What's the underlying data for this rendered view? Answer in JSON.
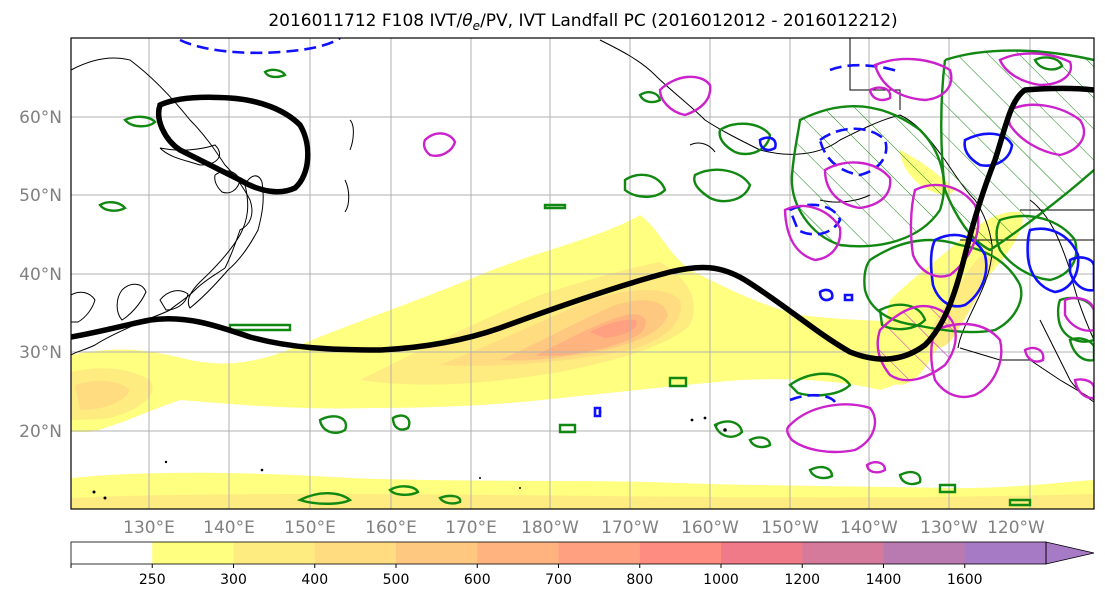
{
  "title": "2016011712 F108 IVT/θe/PV, IVT Landfall PC (2016012012 - 2016012212)",
  "title_parts": {
    "pre": "2016011712 F108 IVT/",
    "theta": "θ",
    "theta_sub": "e",
    "post": "/PV, IVT Landfall PC (2016012012 - 2016012212)"
  },
  "lat_labels": [
    "60°N",
    "50°N",
    "40°N",
    "30°N",
    "20°N"
  ],
  "lon_labels": [
    "130°E",
    "140°E",
    "150°E",
    "160°E",
    "170°E",
    "180°W",
    "170°W",
    "160°W",
    "150°W",
    "140°W",
    "130°W",
    "120°W"
  ],
  "colorbar": {
    "ticks": [
      "250",
      "300",
      "400",
      "500",
      "600",
      "700",
      "800",
      "1000",
      "1200",
      "1400",
      "1600"
    ],
    "colors": [
      "#ffffff",
      "#ffff80",
      "#ffec80",
      "#ffdc80",
      "#ffc880",
      "#ffb480",
      "#ffa080",
      "#ff8c80",
      "#f07a88",
      "#d67a9c",
      "#b87ab0",
      "#a67ac4"
    ]
  },
  "contour_colors": {
    "pc_line": "#000000",
    "theta_e": "#1010ff",
    "pv": "#cc22cc",
    "green": "#118811"
  }
}
